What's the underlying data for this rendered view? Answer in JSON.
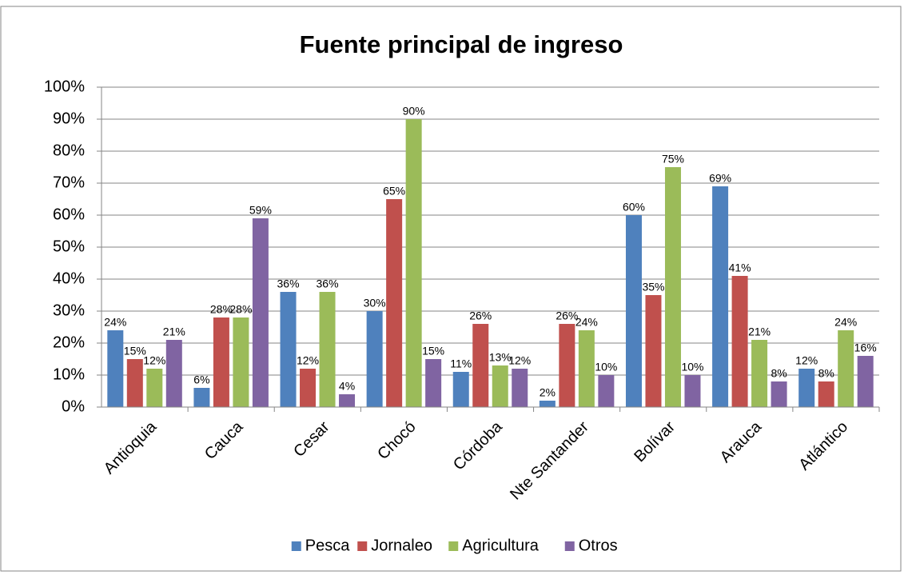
{
  "chart_data": {
    "type": "bar",
    "title": "Fuente principal de ingreso",
    "categories": [
      "Antioquia",
      "Cauca",
      "Cesar",
      "Chocó",
      "Córdoba",
      "Nte Santander",
      "Bolívar",
      "Arauca",
      "Atlántico"
    ],
    "series": [
      {
        "name": "Pesca",
        "color": "#4f81bd",
        "values": [
          24,
          6,
          36,
          30,
          11,
          2,
          60,
          69,
          12
        ],
        "value_labels": [
          "24%",
          "6%",
          "36%",
          "30%",
          "11%",
          "2%",
          "60%",
          "69%",
          "12%"
        ]
      },
      {
        "name": "Jornaleo",
        "color": "#c0504d",
        "values": [
          15,
          28,
          12,
          65,
          26,
          26,
          35,
          41,
          8
        ],
        "value_labels": [
          "15%",
          "28%",
          "12%",
          "65%",
          "26%",
          "26%",
          "35%",
          "41%",
          "8%"
        ]
      },
      {
        "name": "Agricultura",
        "color": "#9bbb59",
        "values": [
          12,
          28,
          36,
          90,
          13,
          24,
          75,
          21,
          24
        ],
        "value_labels": [
          "12%",
          "28%",
          "36%",
          "90%",
          "13%",
          "24%",
          "75%",
          "21%",
          "24%"
        ]
      },
      {
        "name": "Otros",
        "color": "#8064a2",
        "values": [
          21,
          59,
          4,
          15,
          12,
          10,
          10,
          8,
          16
        ],
        "value_labels": [
          "21%",
          "59%",
          "4%",
          "15%",
          "12%",
          "10%",
          "10%",
          "8%",
          "16%"
        ]
      }
    ],
    "ylim": [
      0,
      100
    ],
    "yticks": [
      {
        "value": 0,
        "label": "0%"
      },
      {
        "value": 10,
        "label": "10%"
      },
      {
        "value": 20,
        "label": "20%"
      },
      {
        "value": 30,
        "label": "30%"
      },
      {
        "value": 40,
        "label": "40%"
      },
      {
        "value": 50,
        "label": "50%"
      },
      {
        "value": 60,
        "label": "60%"
      },
      {
        "value": 70,
        "label": "70%"
      },
      {
        "value": 80,
        "label": "80%"
      },
      {
        "value": 90,
        "label": "90%"
      },
      {
        "value": 100,
        "label": "100%"
      }
    ],
    "grid": true,
    "legend": "bottom"
  }
}
